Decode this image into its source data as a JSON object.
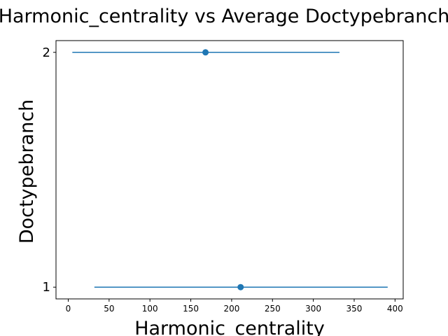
{
  "chart_data": {
    "type": "errorbar",
    "title": "Harmonic_centrality vs Average Doctypebranch",
    "xlabel": "Harmonic_centrality",
    "ylabel": "Doctypebranch",
    "xlim": [
      -15,
      410
    ],
    "ylim": [
      0.95,
      2.05
    ],
    "xticks": [
      0,
      50,
      100,
      150,
      200,
      250,
      300,
      350,
      400
    ],
    "yticks": [
      1,
      2
    ],
    "series": [
      {
        "color": "#1f77b4",
        "points": [
          {
            "y": 2,
            "x": 168,
            "xerr_low": 5,
            "xerr_high": 332
          },
          {
            "y": 1,
            "x": 211,
            "xerr_low": 32,
            "xerr_high": 391
          }
        ]
      }
    ],
    "grid": false
  }
}
